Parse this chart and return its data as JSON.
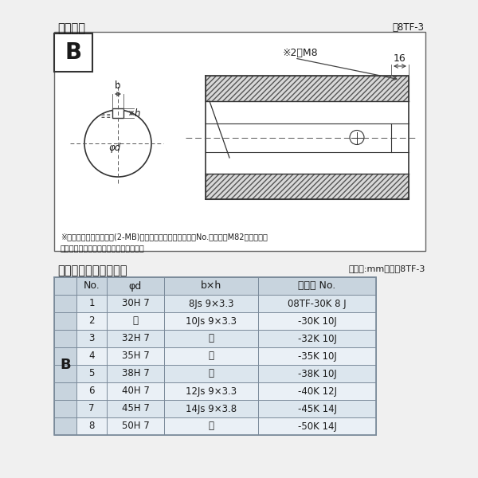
{
  "title_diagram": "軸穴形状",
  "fig_label": "図8TF-3",
  "table_title": "軸穴形状コード一覧表",
  "table_unit": "（単位:mm）　袆8TF-3",
  "note_line1": "※セットボルト用タップ(2-MB)が必要な場合は右記コードNo.の末尾にM82を付ける。",
  "note_line2": "（セットボルトは付属されています。）",
  "col_headers": [
    "No.",
    "φd",
    "b×h",
    "コード No."
  ],
  "rows": [
    [
      "1",
      "30H 7",
      "8Js 9×3.3",
      "08TF-30K 8 J"
    ],
    [
      "2",
      "〃",
      "10Js 9×3.3",
      "-30K 10J"
    ],
    [
      "3",
      "32H 7",
      "〃",
      "-32K 10J"
    ],
    [
      "4",
      "35H 7",
      "〃",
      "-35K 10J"
    ],
    [
      "5",
      "38H 7",
      "〃",
      "-38K 10J"
    ],
    [
      "6",
      "40H 7",
      "12Js 9×3.3",
      "-40K 12J"
    ],
    [
      "7",
      "45H 7",
      "14Js 9×3.8",
      "-45K 14J"
    ],
    [
      "8",
      "50H 7",
      "〃",
      "-50K 14J"
    ]
  ],
  "row_label_B": "B",
  "bg_color": "#f0f0f0",
  "table_header_bg": "#c8d4de",
  "table_row_bg_odd": "#dce6ee",
  "table_row_bg_even": "#eaf0f6",
  "table_border": "#7a8a9a",
  "text_color": "#1a1a1a",
  "diag_box_fill": "#f8f8f8",
  "hatch_fill": "#d0d0d0",
  "dim_color": "#444444",
  "line_color": "#333333"
}
